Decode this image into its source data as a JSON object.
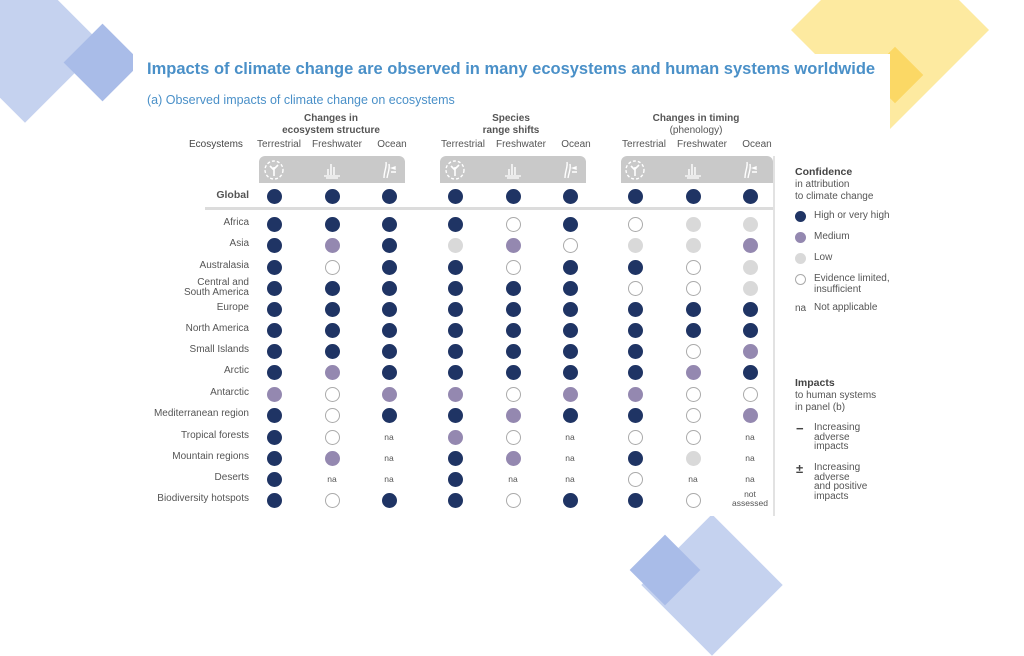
{
  "colors": {
    "high": "#1f3464",
    "medium": "#9488b0",
    "low": "#d9d9d9",
    "limited": "#ffffff",
    "accent": "#4a90c8"
  },
  "header": {
    "title": "Impacts of climate change are observed in many ecosystems and human systems worldwide",
    "subtitle": "(a) Observed impacts of climate change on ecosystems"
  },
  "chart_data": {
    "type": "table",
    "title": "Impacts of climate change are observed in many ecosystems and human systems worldwide",
    "subtitle": "(a) Observed impacts of climate change on ecosystems",
    "row_header": "Ecosystems",
    "groups": [
      {
        "label": "Changes in",
        "label2": "ecosystem structure",
        "columns": [
          "Terrestrial",
          "Freshwater",
          "Ocean"
        ]
      },
      {
        "label": "Species",
        "label2": "range shifts",
        "columns": [
          "Terrestrial",
          "Freshwater",
          "Ocean"
        ]
      },
      {
        "label": "Changes in timing",
        "label2": "(phenology)",
        "columns": [
          "Terrestrial",
          "Freshwater",
          "Ocean"
        ]
      }
    ],
    "column_icons": [
      "terrestrial-icon",
      "freshwater-icon",
      "ocean-icon",
      "terrestrial-icon",
      "freshwater-icon",
      "ocean-icon",
      "terrestrial-icon",
      "freshwater-icon",
      "ocean-icon"
    ],
    "rows": [
      {
        "label": "Global",
        "values": [
          "H",
          "H",
          "H",
          "H",
          "H",
          "H",
          "H",
          "H",
          "H"
        ]
      },
      {
        "label": "Africa",
        "values": [
          "H",
          "H",
          "H",
          "H",
          "E",
          "H",
          "E",
          "L",
          "L"
        ]
      },
      {
        "label": "Asia",
        "values": [
          "H",
          "M",
          "H",
          "L",
          "M",
          "E",
          "L",
          "L",
          "M"
        ]
      },
      {
        "label": "Australasia",
        "values": [
          "H",
          "E",
          "H",
          "H",
          "E",
          "H",
          "H",
          "E",
          "L"
        ]
      },
      {
        "label": "Central and",
        "label2": "South America",
        "values": [
          "H",
          "H",
          "H",
          "H",
          "H",
          "H",
          "E",
          "E",
          "L"
        ]
      },
      {
        "label": "Europe",
        "values": [
          "H",
          "H",
          "H",
          "H",
          "H",
          "H",
          "H",
          "H",
          "H"
        ]
      },
      {
        "label": "North America",
        "values": [
          "H",
          "H",
          "H",
          "H",
          "H",
          "H",
          "H",
          "H",
          "H"
        ]
      },
      {
        "label": "Small Islands",
        "values": [
          "H",
          "H",
          "H",
          "H",
          "H",
          "H",
          "H",
          "E",
          "M"
        ]
      },
      {
        "label": "Arctic",
        "values": [
          "H",
          "M",
          "H",
          "H",
          "H",
          "H",
          "H",
          "M",
          "H"
        ]
      },
      {
        "label": "Antarctic",
        "values": [
          "M",
          "E",
          "M",
          "M",
          "E",
          "M",
          "M",
          "E",
          "E"
        ]
      },
      {
        "label": "Mediterranean region",
        "values": [
          "H",
          "E",
          "H",
          "H",
          "M",
          "H",
          "H",
          "E",
          "M"
        ]
      },
      {
        "label": "Tropical forests",
        "values": [
          "H",
          "E",
          "na",
          "M",
          "E",
          "na",
          "E",
          "E",
          "na"
        ]
      },
      {
        "label": "Mountain regions",
        "values": [
          "H",
          "M",
          "na",
          "H",
          "M",
          "na",
          "H",
          "L",
          "na"
        ]
      },
      {
        "label": "Deserts",
        "values": [
          "H",
          "na",
          "na",
          "H",
          "na",
          "na",
          "E",
          "na",
          "na"
        ]
      },
      {
        "label": "Biodiversity hotspots",
        "values": [
          "H",
          "E",
          "H",
          "H",
          "E",
          "H",
          "H",
          "E",
          "not assessed"
        ]
      }
    ],
    "legend": {
      "confidence_title": "Confidence",
      "confidence_sub1": "in attribution",
      "confidence_sub2": "to climate change",
      "items": [
        {
          "key": "H",
          "label": "High or very high"
        },
        {
          "key": "M",
          "label": "Medium"
        },
        {
          "key": "L",
          "label": "Low"
        },
        {
          "key": "E",
          "label": "Evidence limited,",
          "label2": "insufficient"
        },
        {
          "key": "na",
          "symbol": "na",
          "label": "Not applicable"
        }
      ],
      "impacts_title": "Impacts",
      "impacts_sub1": "to human systems",
      "impacts_sub2": "in panel (b)",
      "impact_items": [
        {
          "symbol": "−",
          "label": "Increasing",
          "label2": "adverse",
          "label3": "impacts"
        },
        {
          "symbol": "±",
          "label": "Increasing",
          "label2": "adverse",
          "label3": "and positive",
          "label4": "impacts"
        }
      ]
    }
  }
}
